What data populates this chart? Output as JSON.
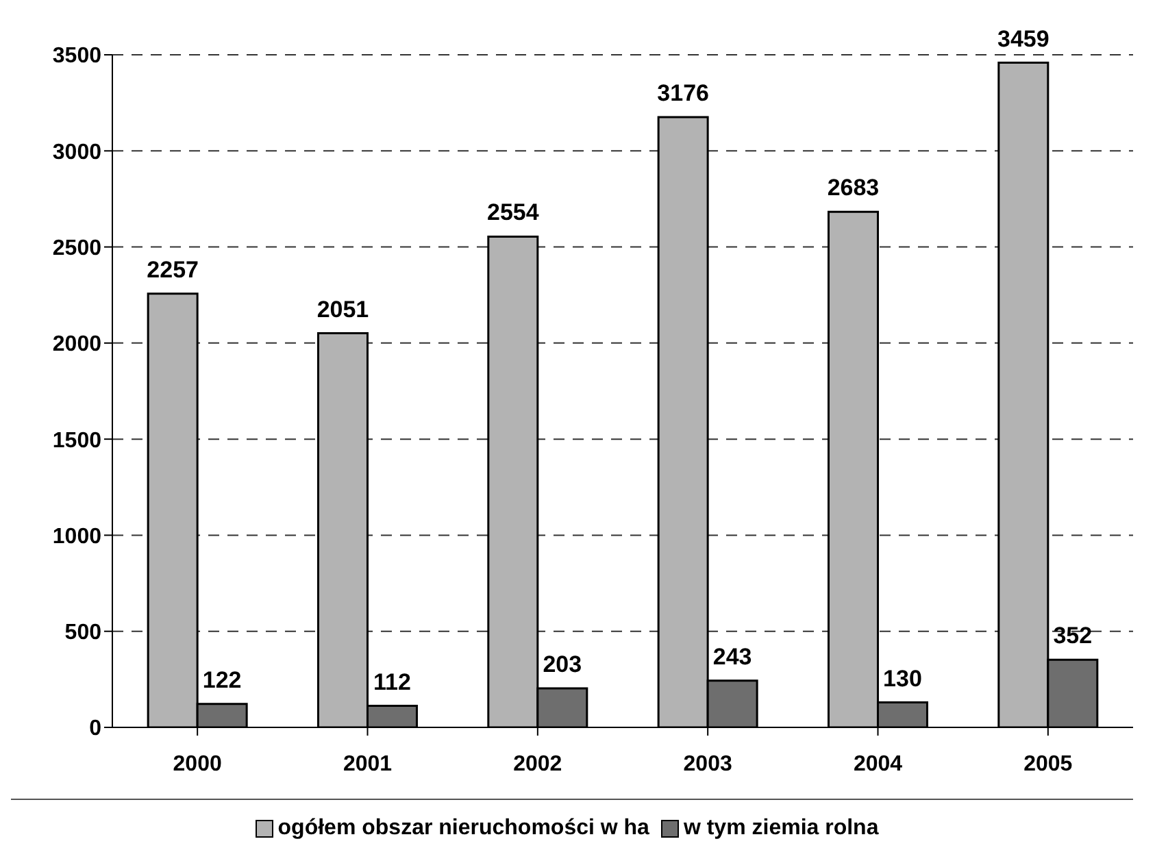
{
  "chart_data": {
    "type": "bar",
    "categories": [
      "2000",
      "2001",
      "2002",
      "2003",
      "2004",
      "2005"
    ],
    "series": [
      {
        "name": "ogółem obszar nieruchomości w ha",
        "color": "#b3b3b3",
        "values": [
          2257,
          2051,
          2554,
          3176,
          2683,
          3459
        ]
      },
      {
        "name": "w tym ziemia rolna",
        "color": "#6e6e6e",
        "values": [
          122,
          112,
          203,
          243,
          130,
          352
        ]
      }
    ],
    "ylim": [
      0,
      3500
    ],
    "yticks": [
      0,
      500,
      1000,
      1500,
      2000,
      2500,
      3000,
      3500
    ],
    "grid": "y",
    "legend": "bottom",
    "data_labels": true
  }
}
